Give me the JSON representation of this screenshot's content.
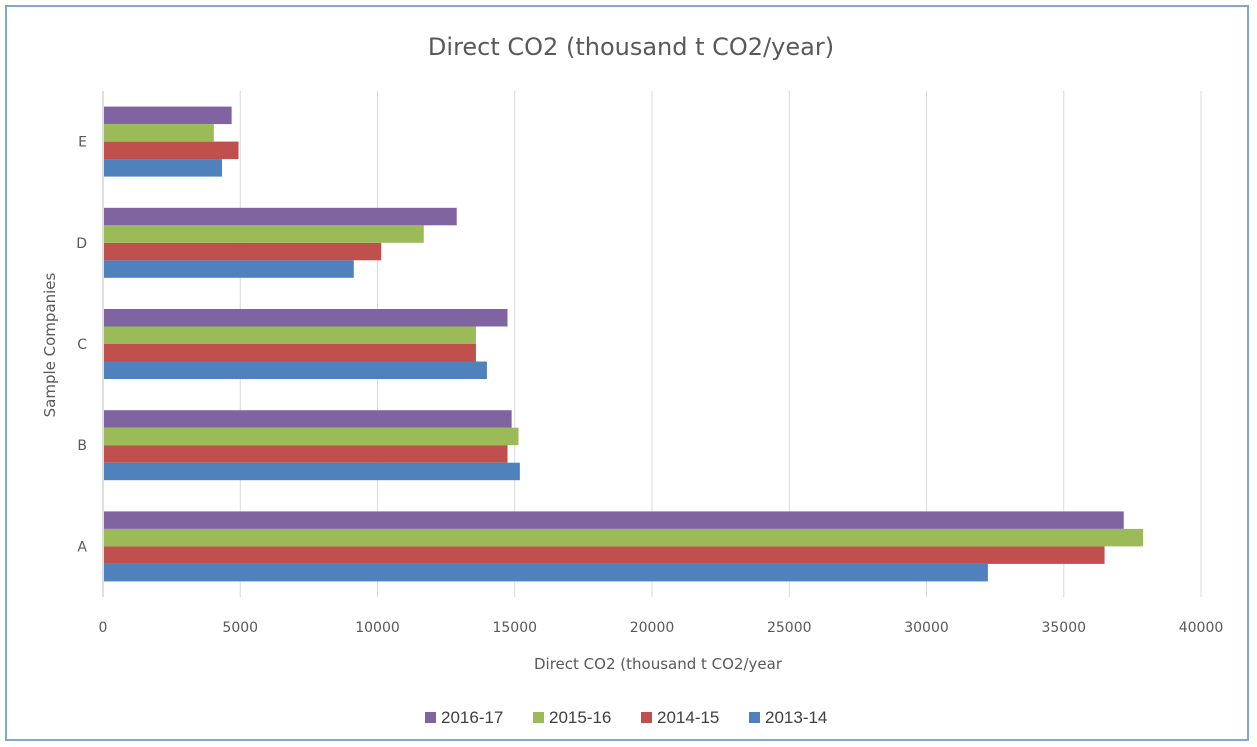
{
  "chart_data": {
    "type": "bar",
    "orientation": "horizontal",
    "title": "Direct CO2 (thousand t CO2/year)",
    "xlabel": "Direct CO2 (thousand t CO2/year",
    "ylabel": "Sample Companies",
    "categories": [
      "A",
      "B",
      "C",
      "D",
      "E"
    ],
    "xlim": [
      0,
      40000
    ],
    "xticks": [
      "0",
      "5000",
      "10000",
      "15000",
      "20000",
      "25000",
      "30000",
      "35000",
      "40000"
    ],
    "grid": true,
    "legend_position": "bottom",
    "series": [
      {
        "name": "2013-14",
        "color": "#4f81bd",
        "values": [
          32200,
          15150,
          13950,
          9100,
          4300
        ]
      },
      {
        "name": "2014-15",
        "color": "#c0504d",
        "values": [
          36450,
          14700,
          13550,
          10100,
          4900
        ]
      },
      {
        "name": "2015-16",
        "color": "#9bbb59",
        "values": [
          37850,
          15100,
          13550,
          11650,
          4000
        ]
      },
      {
        "name": "2016-17",
        "color": "#8064a2",
        "values": [
          37150,
          14850,
          14700,
          12850,
          4650
        ]
      }
    ],
    "legend_order": [
      "2016-17",
      "2015-16",
      "2014-15",
      "2013-14"
    ]
  }
}
